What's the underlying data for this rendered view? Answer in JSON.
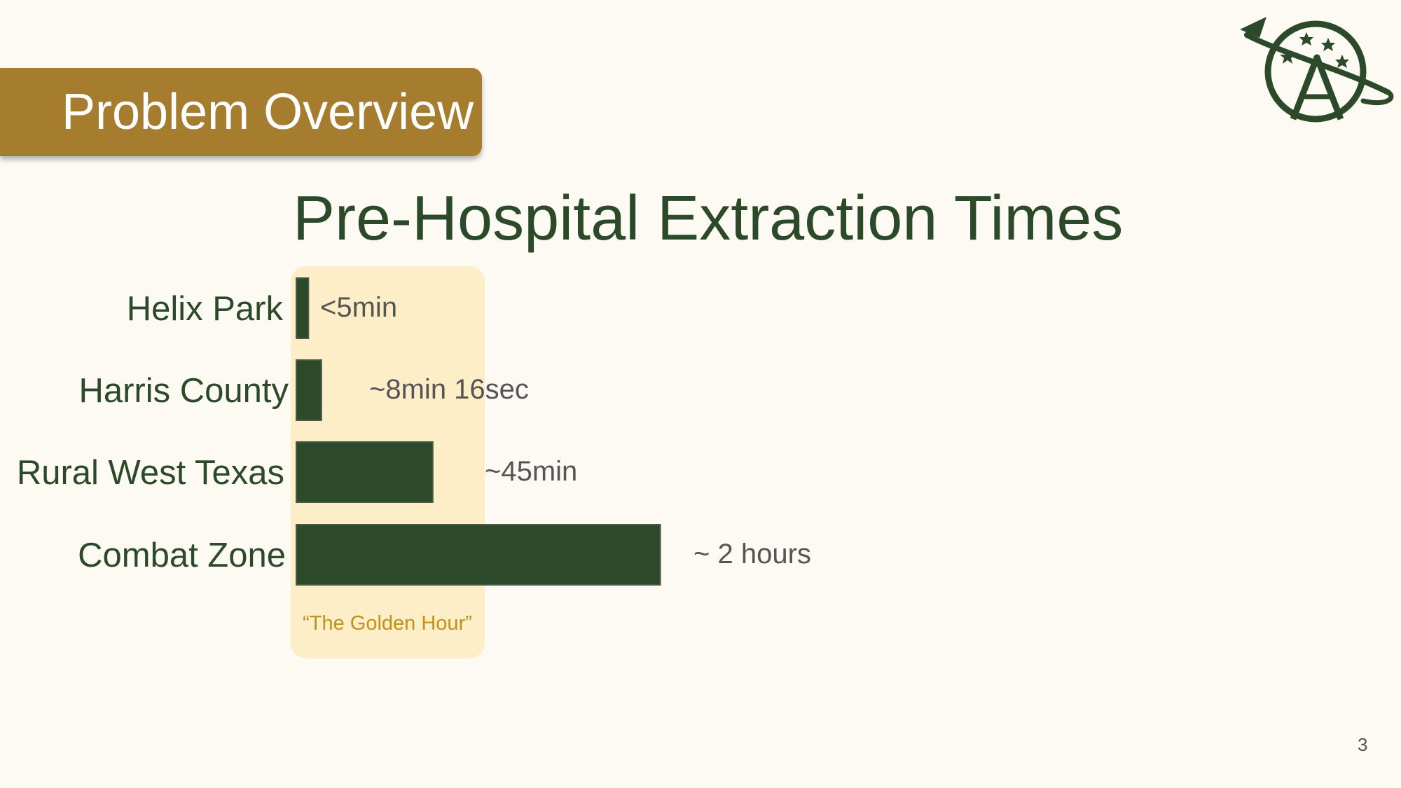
{
  "slide": {
    "section_title": "Problem Overview",
    "page_number": "3",
    "logo_icon": "planet-star-logo-icon"
  },
  "colors": {
    "background": "#fcfaf3",
    "banner": "#a67c2e",
    "bar": "#2c4a2a",
    "golden_hour_band": "#fdeec8",
    "golden_hour_text": "#c09215",
    "value_text": "#555555"
  },
  "chart_data": {
    "type": "bar",
    "orientation": "horizontal",
    "title": "Pre-Hospital Extraction Times",
    "xlabel": "",
    "ylabel": "",
    "unit": "minutes",
    "categories": [
      "Helix Park",
      "Harris County",
      "Rural West Texas",
      "Combat Zone"
    ],
    "values": [
      4,
      8.27,
      45,
      120
    ],
    "data_labels": [
      "<5min",
      "~8min 16sec",
      "~45min",
      "~ 2 hours"
    ],
    "xlim": [
      0,
      120
    ],
    "grid": false,
    "legend": "none",
    "annotation": {
      "label": "“The Golden Hour”",
      "range": [
        0,
        60
      ]
    }
  }
}
